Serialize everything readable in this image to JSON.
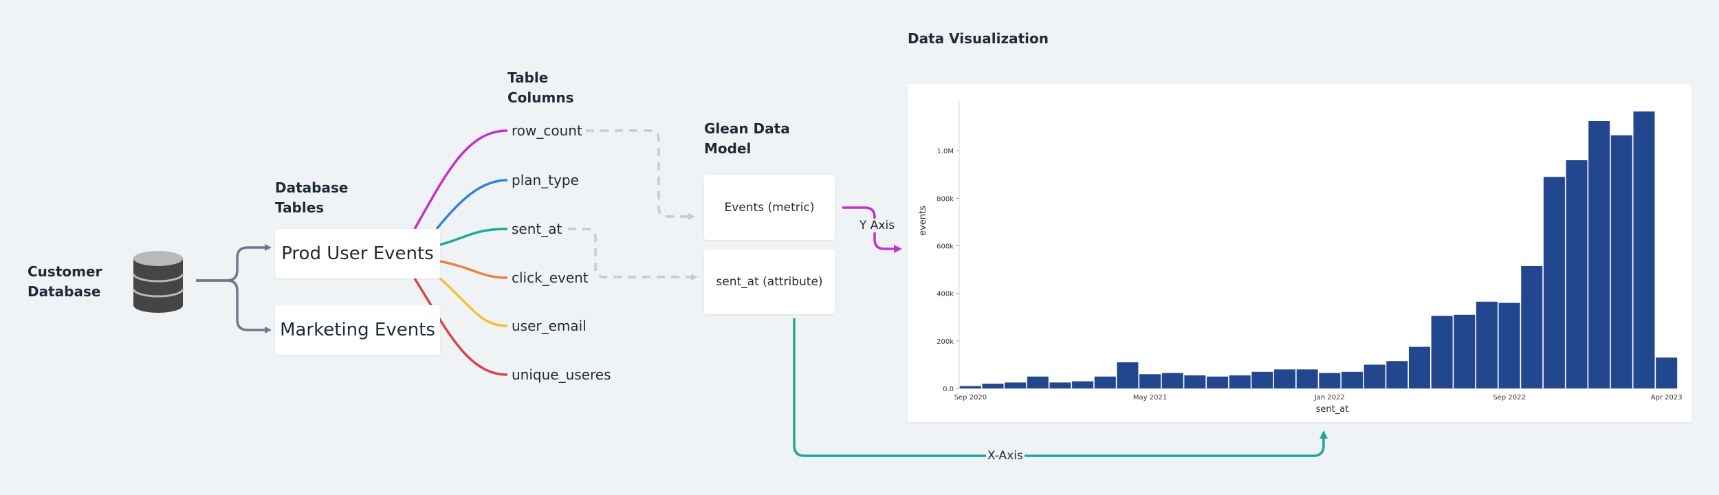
{
  "labels": {
    "customer_database": [
      "Customer",
      "Database"
    ],
    "database_tables": [
      "Database",
      "Tables"
    ],
    "table_columns": [
      "Table",
      "Columns"
    ],
    "glean_data_model": [
      "Glean Data",
      "Model"
    ],
    "data_visualization": "Data Visualization"
  },
  "tables": [
    "Prod User Events",
    "Marketing Events"
  ],
  "columns": [
    "row_count",
    "plan_type",
    "sent_at",
    "click_event",
    "user_email",
    "unique_useres"
  ],
  "model": [
    "Events (metric)",
    "sent_at (attribute)"
  ],
  "connectors": {
    "y_axis": "Y Axis",
    "x_axis": "X-Axis"
  },
  "colors": {
    "pink": "#c531c8",
    "blue": "#2f86d6",
    "teal": "#1ba99a",
    "orange": "#e8823a",
    "yellow": "#f1c232",
    "red": "#d64545",
    "gray_arrow": "#6b7a8c",
    "dashed": "#c5ccd5",
    "bar": "#22478f"
  },
  "icons": {
    "database": "database-icon"
  },
  "chart_data": {
    "type": "bar",
    "xlabel": "sent_at",
    "ylabel": "events",
    "ylim": [
      0,
      1180000
    ],
    "yticks": [
      0,
      200000,
      400000,
      600000,
      800000,
      1000000
    ],
    "ytick_labels": [
      "0.0",
      "200k",
      "400k",
      "600k",
      "800k",
      "1.0M"
    ],
    "xtick_labels": [
      "Sep 2020",
      "May 2021",
      "Jan 2022",
      "Sep 2022",
      "Apr 2023"
    ],
    "xtick_positions": [
      0,
      8,
      16,
      24,
      31
    ],
    "x": [
      "2020-09",
      "2020-10",
      "2020-11",
      "2020-12",
      "2021-01",
      "2021-02",
      "2021-03",
      "2021-04",
      "2021-05",
      "2021-06",
      "2021-07",
      "2021-08",
      "2021-09",
      "2021-10",
      "2021-11",
      "2021-12",
      "2022-01",
      "2022-02",
      "2022-03",
      "2022-04",
      "2022-05",
      "2022-06",
      "2022-07",
      "2022-08",
      "2022-09",
      "2022-10",
      "2022-11",
      "2022-12",
      "2023-01",
      "2023-02",
      "2023-03",
      "2023-04"
    ],
    "values": [
      10000,
      20000,
      25000,
      50000,
      25000,
      30000,
      50000,
      110000,
      60000,
      65000,
      55000,
      50000,
      55000,
      70000,
      80000,
      80000,
      65000,
      70000,
      100000,
      115000,
      175000,
      305000,
      310000,
      365000,
      360000,
      515000,
      890000,
      960000,
      1125000,
      1065000,
      1165000,
      130000
    ]
  }
}
